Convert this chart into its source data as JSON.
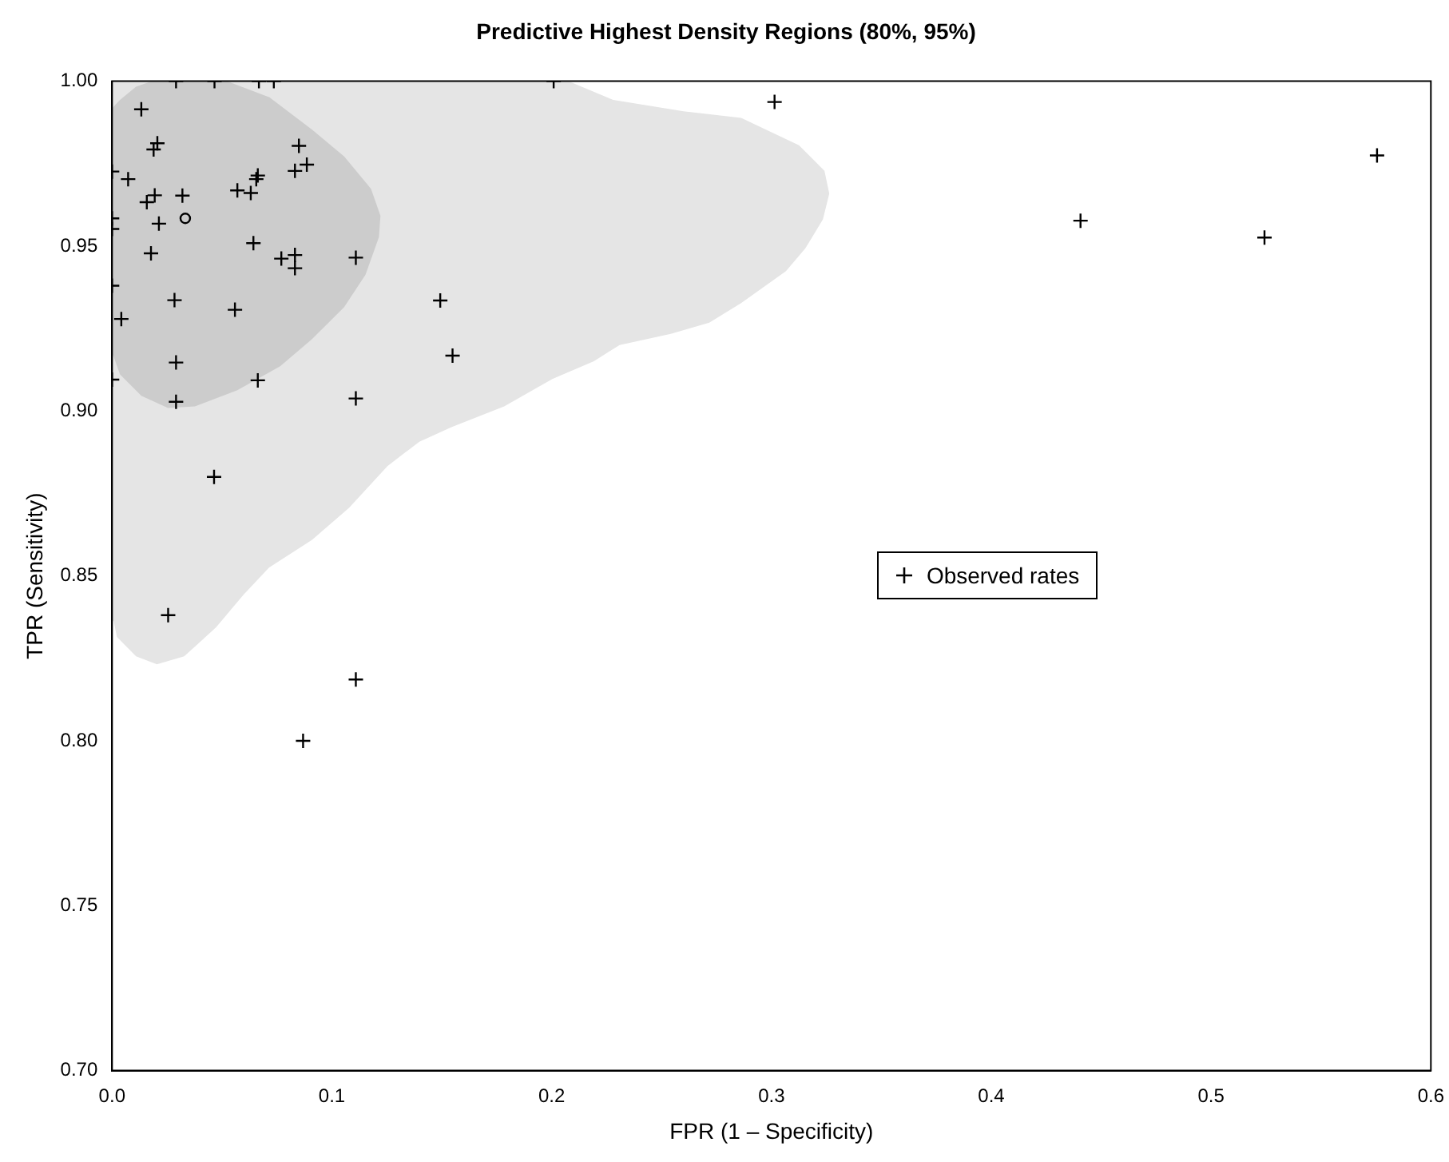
{
  "chart_data": {
    "type": "scatter",
    "title": "Predictive Highest Density Regions (80%, 95%)",
    "xlabel": "FPR (1 – Specificity)",
    "ylabel": "TPR (Sensitivity)",
    "xlim": [
      0,
      0.6
    ],
    "xticks": [
      {
        "value": 0,
        "label": "0.0"
      },
      0.1,
      0.2,
      0.3,
      0.4,
      0.5,
      0.6
    ],
    "ylim": [
      0.7,
      1.0
    ],
    "yticks": [
      {
        "value": 0.7,
        "label": "0.70"
      },
      0.75,
      {
        "value": 0.8,
        "label": "0.80"
      },
      0.85,
      {
        "value": 0.9,
        "label": "0.90"
      },
      0.95,
      {
        "value": 1.0,
        "label": "1.00"
      }
    ],
    "legend": "right",
    "series": [
      {
        "type": "area",
        "color": "#e5e5e5",
        "x": [
          0,
          0.2076,
          0.228,
          0.26,
          0.2862,
          0.3125,
          0.3241,
          0.3263,
          0.3234,
          0.3154,
          0.3066,
          0.2862,
          0.2717,
          0.2542,
          0.2309,
          0.2192,
          0.2003,
          0.1784,
          0.1544,
          0.1398,
          0.1253,
          0.1078,
          0.091,
          0.0714,
          0.0597,
          0.0473,
          0.0328,
          0.0204,
          0.0109,
          0.0022,
          0.0007,
          0
        ],
        "values": [
          1,
          1,
          0.9943,
          0.9909,
          0.9889,
          0.9806,
          0.9728,
          0.9659,
          0.9581,
          0.9493,
          0.9424,
          0.9327,
          0.9268,
          0.9234,
          0.92,
          0.9151,
          0.9097,
          0.9014,
          0.8951,
          0.8907,
          0.8833,
          0.8706,
          0.8609,
          0.8525,
          0.8442,
          0.8344,
          0.8256,
          0.8232,
          0.8256,
          0.8315,
          0.8364,
          0.8364
        ]
      },
      {
        "type": "area",
        "color": "#cccccc",
        "x": [
          0,
          0.0036,
          0.0109,
          0.0182,
          0.0522,
          0.0716,
          0.091,
          0.1056,
          0.1178,
          0.1221,
          0.1214,
          0.1153,
          0.1056,
          0.091,
          0.0765,
          0.057,
          0.0377,
          0.0255,
          0.0133,
          0.0036,
          0.0005,
          0
        ],
        "values": [
          0.9918,
          0.9943,
          0.9983,
          1,
          1,
          0.9951,
          0.9853,
          0.9772,
          0.9674,
          0.9592,
          0.9527,
          0.9413,
          0.9315,
          0.9218,
          0.9136,
          0.9063,
          0.9014,
          0.9009,
          0.9046,
          0.9111,
          0.9169,
          0.9169
        ]
      },
      {
        "type": "scatter",
        "name": "Observed rates",
        "color": "#000000",
        "marker": "cross",
        "x": [
          0.0133,
          0.0206,
          0.0189,
          0.085,
          0.0073,
          0.0663,
          0.0656,
          0.0832,
          0.0886,
          0.0194,
          0.032,
          0.0158,
          0.057,
          0.0631,
          0.0213,
          0.0643,
          0.0177,
          0.077,
          0.0832,
          0.0832,
          0.1109,
          0.0284,
          0.0559,
          0.1493,
          0.0042,
          0.1549,
          0.0291,
          0.0663,
          0.1109,
          0.0291,
          0.0464,
          0.0255,
          0.1109,
          0.0869,
          0.3014,
          0.4406,
          0.5243,
          0.5755,
          0.0291,
          0.0466,
          0.0668,
          0.0736,
          0.2009,
          0,
          0,
          0,
          0,
          0
        ],
        "values": [
          0.9915,
          0.9812,
          0.9793,
          0.9804,
          0.9703,
          0.9714,
          0.9703,
          0.9728,
          0.9747,
          0.9654,
          0.9653,
          0.9633,
          0.9669,
          0.9661,
          0.9568,
          0.9509,
          0.9478,
          0.9462,
          0.9473,
          0.9433,
          0.9465,
          0.9336,
          0.9307,
          0.9335,
          0.9279,
          0.9168,
          0.9147,
          0.9093,
          0.9038,
          0.9028,
          0.88,
          0.8381,
          0.8186,
          0.8,
          0.9937,
          0.9577,
          0.9526,
          0.9775,
          1,
          1,
          1,
          1,
          1,
          0.9726,
          0.9584,
          0.9552,
          0.938,
          0.9095
        ]
      },
      {
        "type": "scatter",
        "color": "#000000",
        "marker": "circle",
        "x": [
          0.0333
        ],
        "values": [
          0.9584
        ]
      }
    ]
  }
}
